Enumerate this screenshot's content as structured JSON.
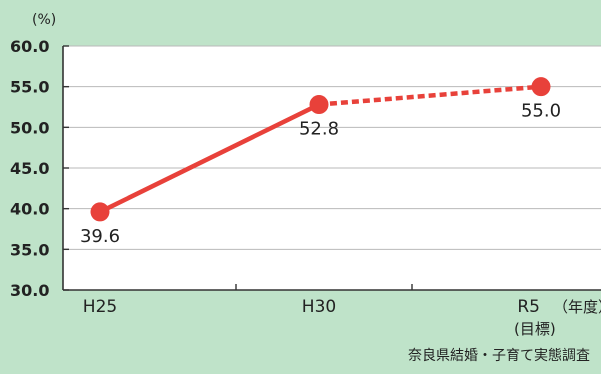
{
  "chart_data": {
    "type": "line",
    "unit_label": "(%)",
    "categories": [
      "H25",
      "H30",
      "R5"
    ],
    "x_axis_suffix": "（年度）",
    "target_note": "(目標)",
    "series": [
      {
        "values": [
          39.6,
          52.8,
          55.0
        ],
        "value_labels": [
          "39.6",
          "52.8",
          "55.0"
        ],
        "segment_styles": [
          "solid",
          "dashed"
        ],
        "color": "#e8413a"
      }
    ],
    "ylim": [
      30.0,
      60.0
    ],
    "y_ticks": [
      "30.0",
      "35.0",
      "40.0",
      "45.0",
      "50.0",
      "55.0",
      "60.0"
    ],
    "grid": true,
    "source": "奈良県結婚・子育て実態調査"
  }
}
